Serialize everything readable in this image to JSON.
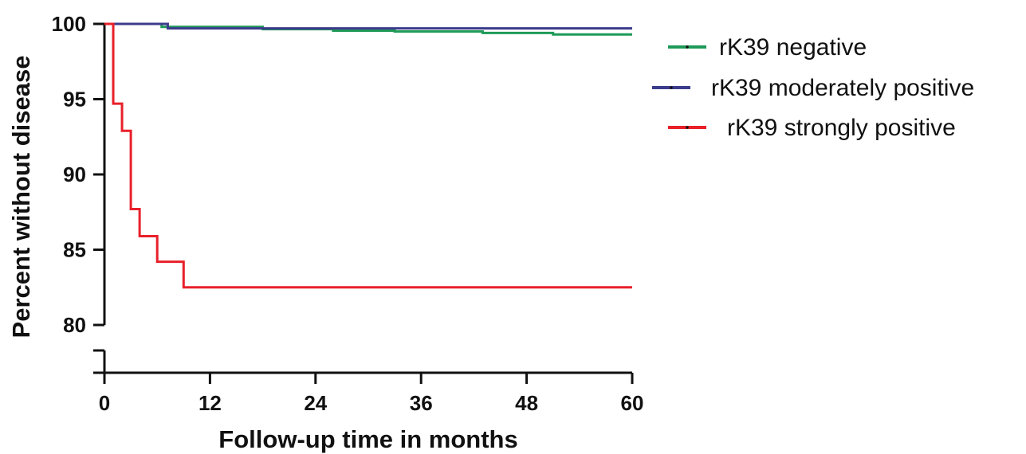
{
  "chart_data": {
    "type": "line",
    "step": true,
    "title": "",
    "xlabel": "Follow-up time in months",
    "ylabel": "Percent without disease",
    "xlim": [
      0,
      60
    ],
    "ylim": [
      80,
      100
    ],
    "y_axis_break_below": 80,
    "xticks": [
      "0",
      "12",
      "24",
      "36",
      "48",
      "60"
    ],
    "yticks": [
      "80",
      "85",
      "90",
      "95",
      "100"
    ],
    "grid": false,
    "legend_position": "top-right",
    "series": [
      {
        "name": "rK39 negative",
        "color": "#1e9a58",
        "x": [
          0,
          6.5,
          18,
          26,
          33,
          43,
          51,
          60
        ],
        "y": [
          100,
          99.8,
          99.65,
          99.55,
          99.5,
          99.4,
          99.3,
          99.3
        ]
      },
      {
        "name": "rK39 moderately positive",
        "color": "#3c3c8c",
        "x": [
          0,
          7.2,
          60
        ],
        "y": [
          100,
          99.7,
          99.7
        ]
      },
      {
        "name": "rK39 strongly positive",
        "color": "#e8202a",
        "x": [
          0,
          1,
          2,
          3,
          4,
          6,
          9,
          60
        ],
        "y": [
          100,
          94.7,
          92.9,
          87.7,
          85.9,
          84.2,
          82.5,
          82.5
        ]
      }
    ]
  }
}
